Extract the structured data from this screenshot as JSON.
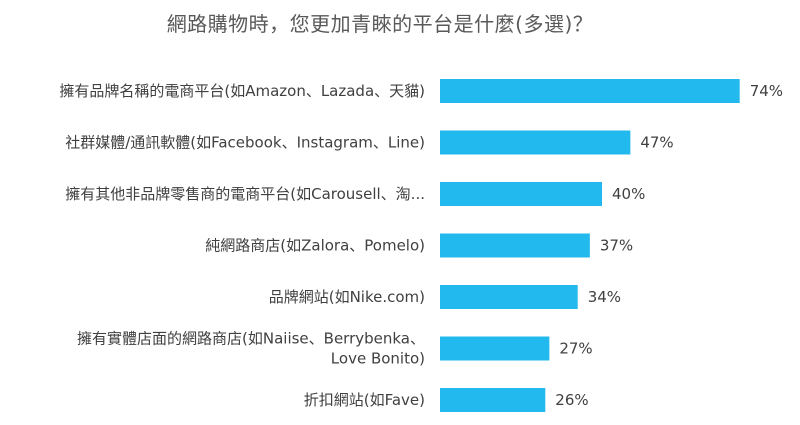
{
  "chart_data": {
    "type": "bar",
    "orientation": "horizontal",
    "title": "網路購物時，您更加青睞的平台是什麼(多選)？",
    "categories": [
      [
        "擁有品牌名稱的電商平台(如Amazon、Lazada、天貓)"
      ],
      [
        "社群媒體/通訊軟體(如Facebook、Instagram、Line)"
      ],
      [
        "擁有其他非品牌零售商的電商平台(如Carousell、淘..."
      ],
      [
        "純網路商店(如Zalora、Pomelo)"
      ],
      [
        "品牌網站(如Nike.com)"
      ],
      [
        "擁有實體店面的網路商店(如Naiise、Berrybenka、",
        "Love Bonito)"
      ],
      [
        "折扣網站(如Fave)"
      ]
    ],
    "values": [
      74,
      47,
      40,
      37,
      34,
      27,
      26
    ],
    "value_labels": [
      "74%",
      "47%",
      "40%",
      "37%",
      "34%",
      "27%",
      "26%"
    ],
    "unit": "%",
    "xlim": [
      0,
      100
    ],
    "grid": false,
    "legend": false,
    "bar_color": "#22B9EE"
  }
}
